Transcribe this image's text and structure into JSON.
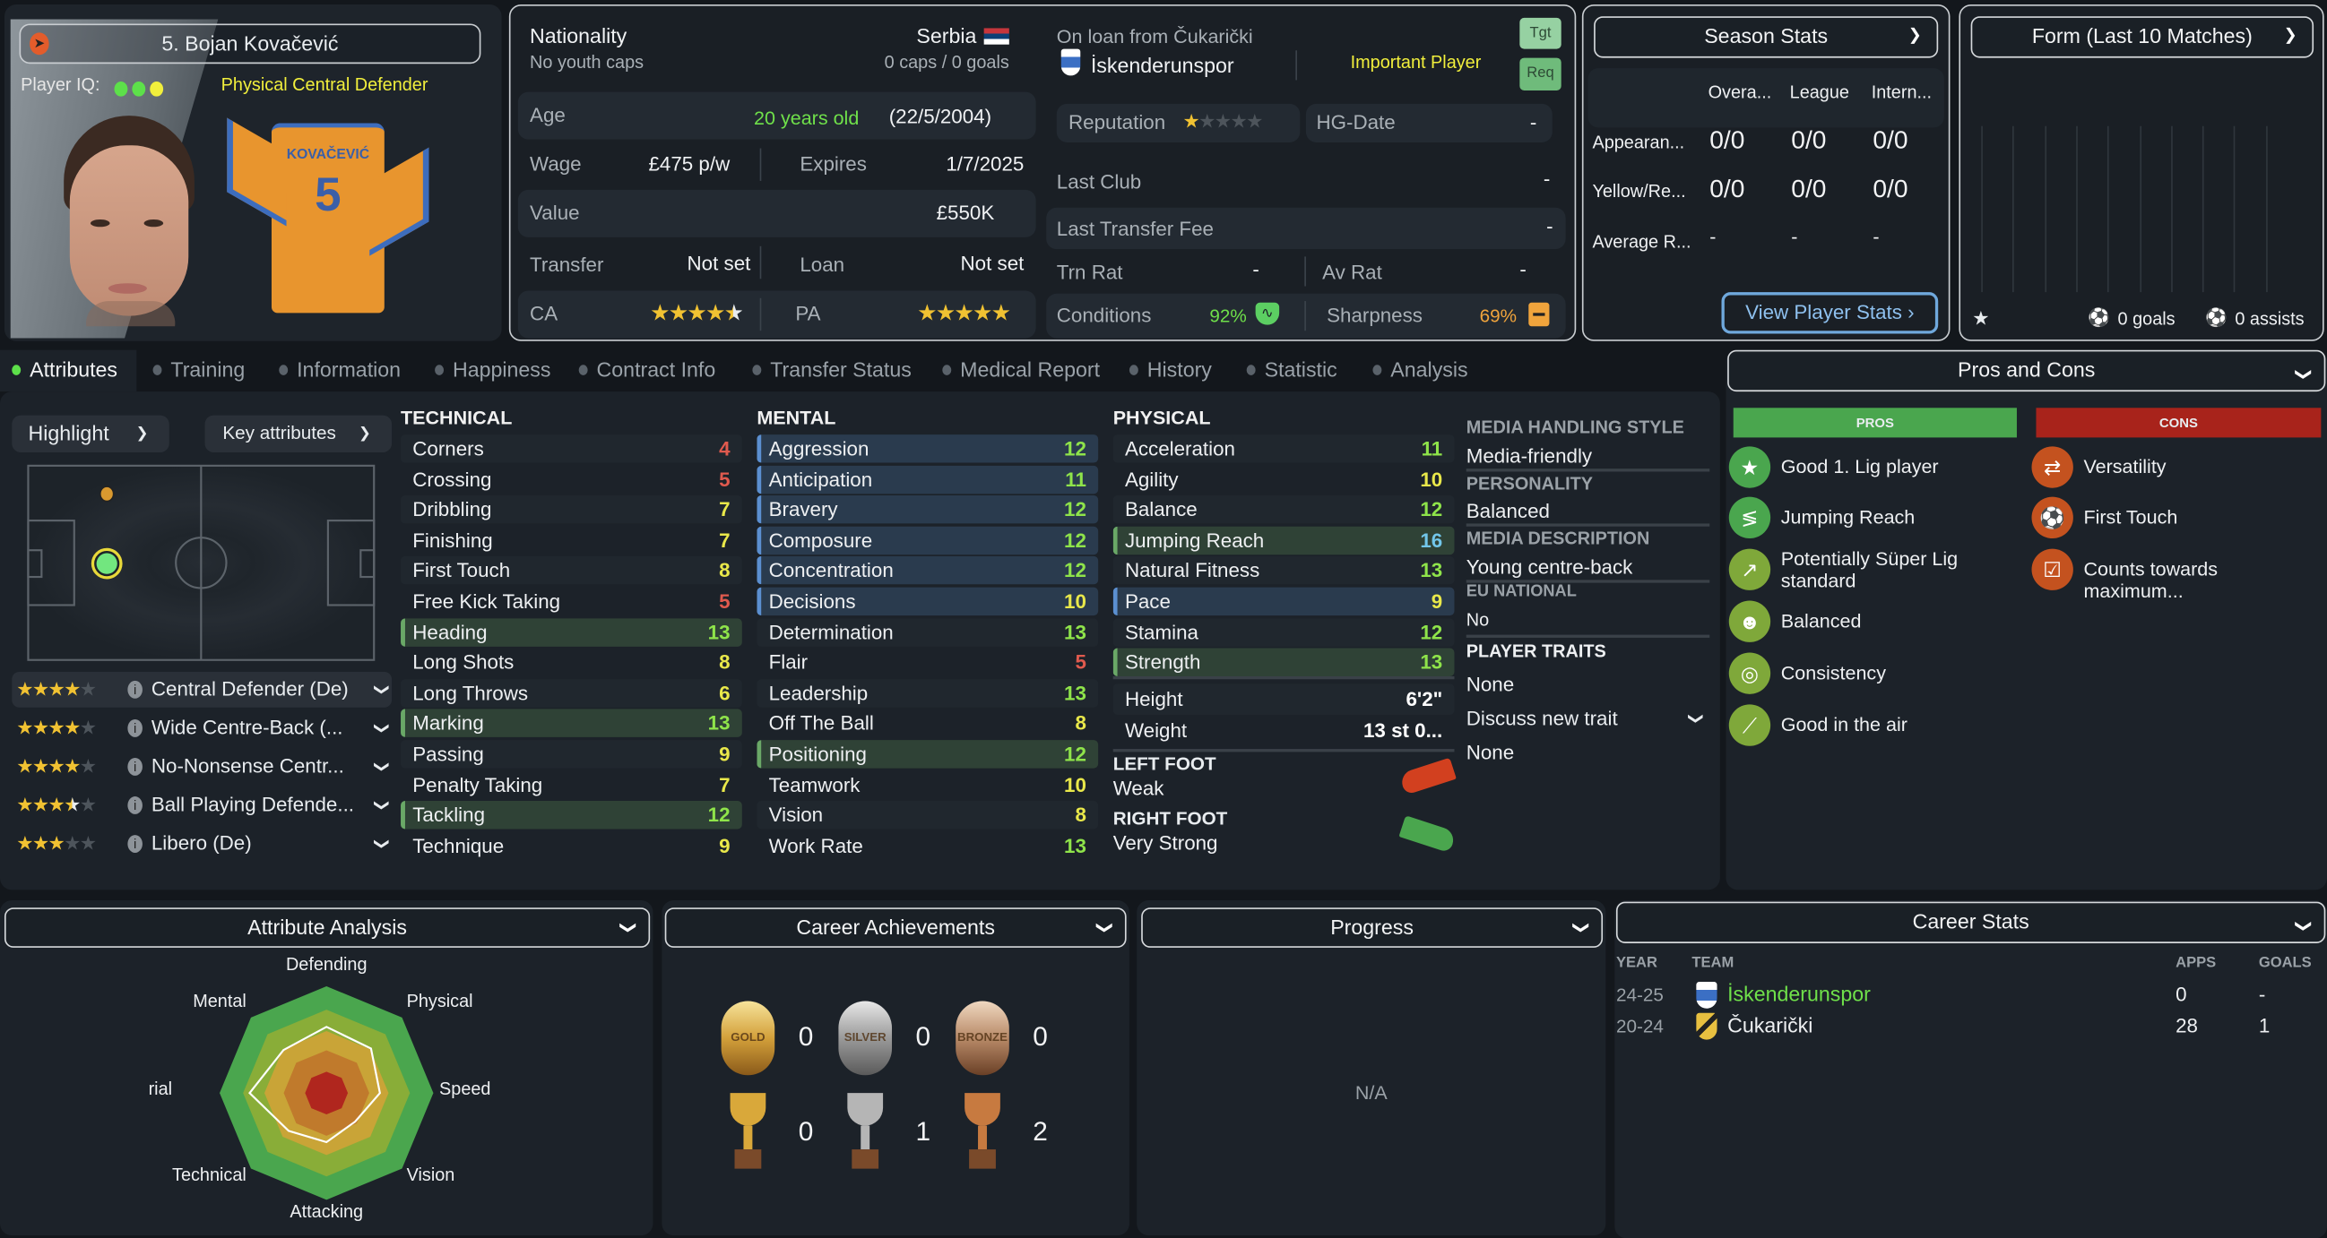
{
  "player": {
    "name": "5. Bojan Kovačević",
    "iq_label": "Player IQ:",
    "iq_colors": [
      "#5de04a",
      "#5de04a",
      "#f1ef3c"
    ],
    "role_summary": "Physical Central Defender",
    "shirt_name": "KOVAČEVIĆ",
    "shirt_number": "5",
    "portrait": "player-face-photo"
  },
  "info": {
    "nationality_label": "Nationality",
    "nationality": "Serbia",
    "youth_caps": "No youth caps",
    "caps": "0 caps / 0 goals",
    "age_label": "Age",
    "age": "20 years old",
    "dob": "(22/5/2004)",
    "wage_label": "Wage",
    "wage": "£475 p/w",
    "expires_label": "Expires",
    "expires": "1/7/2025",
    "value_label": "Value",
    "value": "£550K",
    "transfer_label": "Transfer",
    "transfer": "Not set",
    "loan_label": "Loan",
    "loan": "Not set",
    "ca_label": "CA",
    "ca_stars": 4.5,
    "pa_label": "PA",
    "pa_stars": 5
  },
  "club": {
    "loan_from": "On loan from Čukarički",
    "club": "İskenderunspor",
    "status": "Important Player",
    "tgt": "Tgt",
    "req": "Req",
    "reputation_label": "Reputation",
    "reputation_stars": 1,
    "hg_label": "HG-Date",
    "hg_value": "-",
    "last_club_label": "Last Club",
    "last_club": "-",
    "last_fee_label": "Last Transfer Fee",
    "last_fee": "-",
    "trn_label": "Trn Rat",
    "trn": "-",
    "av_label": "Av Rat",
    "av": "-",
    "conditions_label": "Conditions",
    "conditions": "92%",
    "sharpness_label": "Sharpness",
    "sharpness": "69%"
  },
  "season": {
    "title": "Season Stats",
    "cols": [
      "Overa...",
      "League",
      "Intern..."
    ],
    "rows": [
      {
        "label": "Appearan...",
        "values": [
          "0/0",
          "0/0",
          "0/0"
        ]
      },
      {
        "label": "Yellow/Re...",
        "values": [
          "0/0",
          "0/0",
          "0/0"
        ]
      },
      {
        "label": "Average R...",
        "values": [
          "-",
          "-",
          "-"
        ]
      }
    ],
    "button": "View Player Stats ›"
  },
  "form": {
    "title": "Form (Last 10 Matches)",
    "goals": "0 goals",
    "assists": "0 assists"
  },
  "tabs": [
    "Attributes",
    "Training",
    "Information",
    "Happiness",
    "Contract Info",
    "Transfer Status",
    "Medical Report",
    "History",
    "Statistic",
    "Analysis"
  ],
  "active_tab": "Attributes",
  "controls": {
    "highlight": "Highlight",
    "key_attributes": "Key attributes"
  },
  "roles": [
    {
      "name": "Central Defender (De)",
      "stars": 4
    },
    {
      "name": "Wide Centre-Back (...",
      "stars": 4
    },
    {
      "name": "No-Nonsense Centr...",
      "stars": 4
    },
    {
      "name": "Ball Playing Defende...",
      "stars": 3.5
    },
    {
      "name": "Libero (De)",
      "stars": 3
    }
  ],
  "attributes": {
    "technical": {
      "title": "TECHNICAL",
      "items": [
        {
          "name": "Corners",
          "value": 4
        },
        {
          "name": "Crossing",
          "value": 5
        },
        {
          "name": "Dribbling",
          "value": 7
        },
        {
          "name": "Finishing",
          "value": 7
        },
        {
          "name": "First Touch",
          "value": 8
        },
        {
          "name": "Free Kick Taking",
          "value": 5
        },
        {
          "name": "Heading",
          "value": 13,
          "highlight": "green"
        },
        {
          "name": "Long Shots",
          "value": 8
        },
        {
          "name": "Long Throws",
          "value": 6
        },
        {
          "name": "Marking",
          "value": 13,
          "highlight": "green"
        },
        {
          "name": "Passing",
          "value": 9
        },
        {
          "name": "Penalty Taking",
          "value": 7
        },
        {
          "name": "Tackling",
          "value": 12,
          "highlight": "green"
        },
        {
          "name": "Technique",
          "value": 9
        }
      ]
    },
    "mental": {
      "title": "MENTAL",
      "items": [
        {
          "name": "Aggression",
          "value": 12,
          "highlight": "blue"
        },
        {
          "name": "Anticipation",
          "value": 11,
          "highlight": "blue"
        },
        {
          "name": "Bravery",
          "value": 12,
          "highlight": "blue"
        },
        {
          "name": "Composure",
          "value": 12,
          "highlight": "blue"
        },
        {
          "name": "Concentration",
          "value": 12,
          "highlight": "blue"
        },
        {
          "name": "Decisions",
          "value": 10,
          "highlight": "blue"
        },
        {
          "name": "Determination",
          "value": 13
        },
        {
          "name": "Flair",
          "value": 5
        },
        {
          "name": "Leadership",
          "value": 13
        },
        {
          "name": "Off The Ball",
          "value": 8
        },
        {
          "name": "Positioning",
          "value": 12,
          "highlight": "green"
        },
        {
          "name": "Teamwork",
          "value": 10
        },
        {
          "name": "Vision",
          "value": 8
        },
        {
          "name": "Work Rate",
          "value": 13
        }
      ]
    },
    "physical": {
      "title": "PHYSICAL",
      "items": [
        {
          "name": "Acceleration",
          "value": 11
        },
        {
          "name": "Agility",
          "value": 10
        },
        {
          "name": "Balance",
          "value": 12
        },
        {
          "name": "Jumping Reach",
          "value": 16,
          "highlight": "green"
        },
        {
          "name": "Natural Fitness",
          "value": 13
        },
        {
          "name": "Pace",
          "value": 9,
          "highlight": "blue"
        },
        {
          "name": "Stamina",
          "value": 12
        },
        {
          "name": "Strength",
          "value": 13,
          "highlight": "green"
        }
      ]
    },
    "height_label": "Height",
    "height": "6'2\"",
    "weight_label": "Weight",
    "weight": "13 st 0...",
    "left_foot_label": "LEFT FOOT",
    "left_foot": "Weak",
    "right_foot_label": "RIGHT FOOT",
    "right_foot": "Very Strong",
    "colors": {
      "low": "#e05a4e",
      "mid": "#e9e84a",
      "high": "#8fe44a",
      "top": "#72c6ea"
    }
  },
  "media": {
    "style_label": "MEDIA HANDLING STYLE",
    "style": "Media-friendly",
    "personality_label": "PERSONALITY",
    "personality": "Balanced",
    "desc_label": "MEDIA DESCRIPTION",
    "desc": "Young centre-back",
    "eu_label": "EU NATIONAL",
    "eu": "No",
    "traits_label": "PLAYER TRAITS",
    "traits": "None",
    "discuss": "Discuss new trait",
    "discuss_value": "None"
  },
  "pros_cons": {
    "title": "Pros and Cons",
    "pros_label": "PROS",
    "cons_label": "CONS",
    "pros": [
      {
        "text": "Good 1. Lig player",
        "icon": "star-icon",
        "color": "#4aa64e"
      },
      {
        "text": "Jumping Reach",
        "icon": "spring-icon",
        "color": "#4aa64e"
      },
      {
        "text": "Potentially Süper Lig standard",
        "icon": "trend-up-icon",
        "color": "#7fa83a"
      },
      {
        "text": "Balanced",
        "icon": "head-icon",
        "color": "#7fa83a"
      },
      {
        "text": "Consistency",
        "icon": "target-icon",
        "color": "#7fa83a"
      },
      {
        "text": "Good in the air",
        "icon": "header-icon",
        "color": "#7fa83a"
      }
    ],
    "cons": [
      {
        "text": "Versatility",
        "icon": "arrows-icon",
        "color": "#c4521f"
      },
      {
        "text": "First Touch",
        "icon": "ball-control-icon",
        "color": "#c4521f"
      },
      {
        "text": "Counts towards maximum...",
        "icon": "document-check-icon",
        "color": "#c4521f"
      }
    ]
  },
  "analysis": {
    "title": "Attribute Analysis",
    "axes": [
      "Defending",
      "Physical",
      "Speed",
      "Vision",
      "Attacking",
      "Technical",
      "Aerial",
      "Mental"
    ],
    "player_levels": [
      0.62,
      0.59,
      0.5,
      0.38,
      0.46,
      0.5,
      0.72,
      0.57
    ]
  },
  "achievements": {
    "title": "Career Achievements",
    "medals": [
      {
        "label": "GOLD",
        "count": "0"
      },
      {
        "label": "SILVER",
        "count": "0"
      },
      {
        "label": "BRONZE",
        "count": "0"
      }
    ],
    "trophies": [
      {
        "kind": "gold",
        "count": "0"
      },
      {
        "kind": "silver",
        "count": "1"
      },
      {
        "kind": "bronze",
        "count": "2"
      }
    ]
  },
  "progress": {
    "title": "Progress",
    "value": "N/A"
  },
  "career": {
    "title": "Career Stats",
    "headers": [
      "YEAR",
      "TEAM",
      "APPS",
      "GOALS"
    ],
    "rows": [
      {
        "year": "24-25",
        "team": "İskenderunspor",
        "apps": "0",
        "goals": "-",
        "current": true
      },
      {
        "year": "20-24",
        "team": "Čukarički",
        "apps": "28",
        "goals": "1"
      }
    ]
  }
}
